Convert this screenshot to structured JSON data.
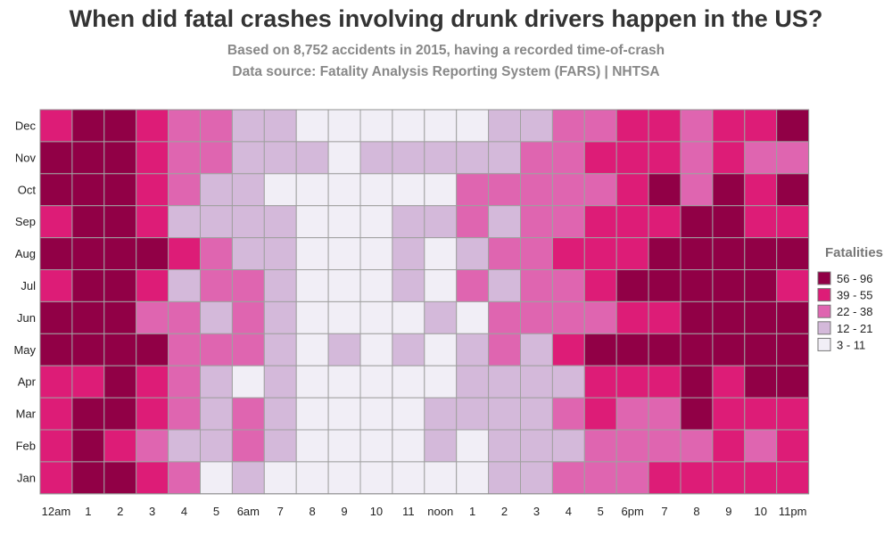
{
  "chart_data": {
    "type": "heatmap",
    "title": "When did fatal crashes involving drunk drivers happen in the US?",
    "subtitle_lines": [
      "Based on 8,752 accidents in 2015, having a recorded time-of-crash",
      "Data source: Fatality Analysis Reporting System (FARS) | NHTSA"
    ],
    "x_labels": [
      "12am",
      "1",
      "2",
      "3",
      "4",
      "5",
      "6am",
      "7",
      "8",
      "9",
      "10",
      "11",
      "noon",
      "1",
      "2",
      "3",
      "4",
      "5",
      "6pm",
      "7",
      "8",
      "9",
      "10",
      "11pm"
    ],
    "y_labels": [
      "Dec",
      "Nov",
      "Oct",
      "Sep",
      "Aug",
      "Jul",
      "Jun",
      "May",
      "Apr",
      "Mar",
      "Feb",
      "Jan"
    ],
    "legend": {
      "title": "Fatalities",
      "position": "right",
      "bins": [
        {
          "label": "56 - 96",
          "color": "#910046"
        },
        {
          "label": "39 - 55",
          "color": "#dd1c77"
        },
        {
          "label": "22 - 38",
          "color": "#df65b0"
        },
        {
          "label": "12 - 21",
          "color": "#d4b9da"
        },
        {
          "label": "3 - 11",
          "color": "#f1eef6"
        }
      ]
    },
    "cell_bins_note": "0 = 56-96, 1 = 39-55, 2 = 22-38, 3 = 12-21, 4 = 3-11",
    "cell_bins": [
      [
        1,
        0,
        0,
        1,
        2,
        2,
        3,
        3,
        4,
        4,
        4,
        4,
        4,
        4,
        3,
        3,
        2,
        2,
        1,
        1,
        2,
        1,
        1,
        0
      ],
      [
        0,
        0,
        0,
        1,
        2,
        2,
        3,
        3,
        3,
        4,
        3,
        3,
        3,
        3,
        3,
        2,
        2,
        1,
        1,
        1,
        2,
        1,
        2,
        2
      ],
      [
        0,
        0,
        0,
        1,
        2,
        3,
        3,
        4,
        4,
        4,
        4,
        4,
        4,
        2,
        2,
        2,
        2,
        2,
        1,
        0,
        2,
        0,
        1,
        0
      ],
      [
        1,
        0,
        0,
        1,
        3,
        3,
        3,
        3,
        4,
        4,
        4,
        3,
        3,
        2,
        3,
        2,
        2,
        1,
        1,
        1,
        0,
        0,
        1,
        1
      ],
      [
        0,
        0,
        0,
        0,
        1,
        2,
        3,
        3,
        4,
        4,
        4,
        3,
        4,
        3,
        2,
        2,
        1,
        1,
        1,
        0,
        0,
        0,
        0,
        0
      ],
      [
        1,
        0,
        0,
        1,
        3,
        2,
        2,
        3,
        4,
        4,
        4,
        3,
        4,
        2,
        3,
        2,
        2,
        1,
        0,
        0,
        0,
        0,
        0,
        1
      ],
      [
        0,
        0,
        0,
        2,
        2,
        3,
        2,
        3,
        4,
        4,
        4,
        4,
        3,
        4,
        2,
        2,
        2,
        2,
        1,
        1,
        0,
        0,
        0,
        0
      ],
      [
        0,
        0,
        0,
        0,
        2,
        2,
        2,
        3,
        4,
        3,
        4,
        3,
        4,
        3,
        2,
        3,
        1,
        0,
        0,
        0,
        0,
        0,
        0,
        0
      ],
      [
        1,
        1,
        0,
        1,
        2,
        3,
        4,
        3,
        4,
        4,
        4,
        4,
        4,
        3,
        3,
        3,
        3,
        1,
        1,
        1,
        0,
        1,
        0,
        0
      ],
      [
        1,
        0,
        0,
        1,
        2,
        3,
        2,
        3,
        4,
        4,
        4,
        4,
        3,
        3,
        3,
        3,
        2,
        1,
        2,
        2,
        0,
        1,
        1,
        1
      ],
      [
        1,
        0,
        1,
        2,
        3,
        3,
        2,
        3,
        4,
        4,
        4,
        4,
        3,
        4,
        3,
        3,
        3,
        2,
        2,
        2,
        2,
        1,
        2,
        1
      ],
      [
        1,
        0,
        0,
        1,
        2,
        4,
        3,
        4,
        4,
        4,
        4,
        4,
        4,
        4,
        3,
        3,
        2,
        2,
        2,
        1,
        1,
        1,
        1,
        1
      ]
    ]
  }
}
